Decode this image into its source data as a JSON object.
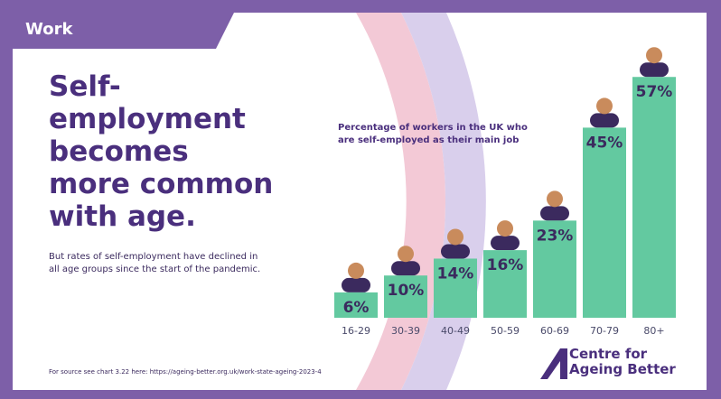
{
  "header": {
    "tab": "Work"
  },
  "title": "Self-employment becomes more common with age.",
  "subtitle": "But rates of self-employment have declined in all age groups since the start of the pandemic.",
  "source": "For source see chart 3.22 here: https://ageing-better.org.uk/work-state-ageing-2023-4",
  "logo": "Centre for Ageing Better",
  "chart_data": {
    "type": "bar",
    "title": "Percentage of workers in the UK who are self-employed as their main job",
    "categories": [
      "16-29",
      "30-39",
      "40-49",
      "50-59",
      "60-69",
      "70-79",
      "80+"
    ],
    "values": [
      6,
      10,
      14,
      16,
      23,
      45,
      57
    ],
    "value_labels": [
      "6%",
      "10%",
      "14%",
      "16%",
      "23%",
      "45%",
      "57%"
    ],
    "color": "#63c9a0"
  }
}
